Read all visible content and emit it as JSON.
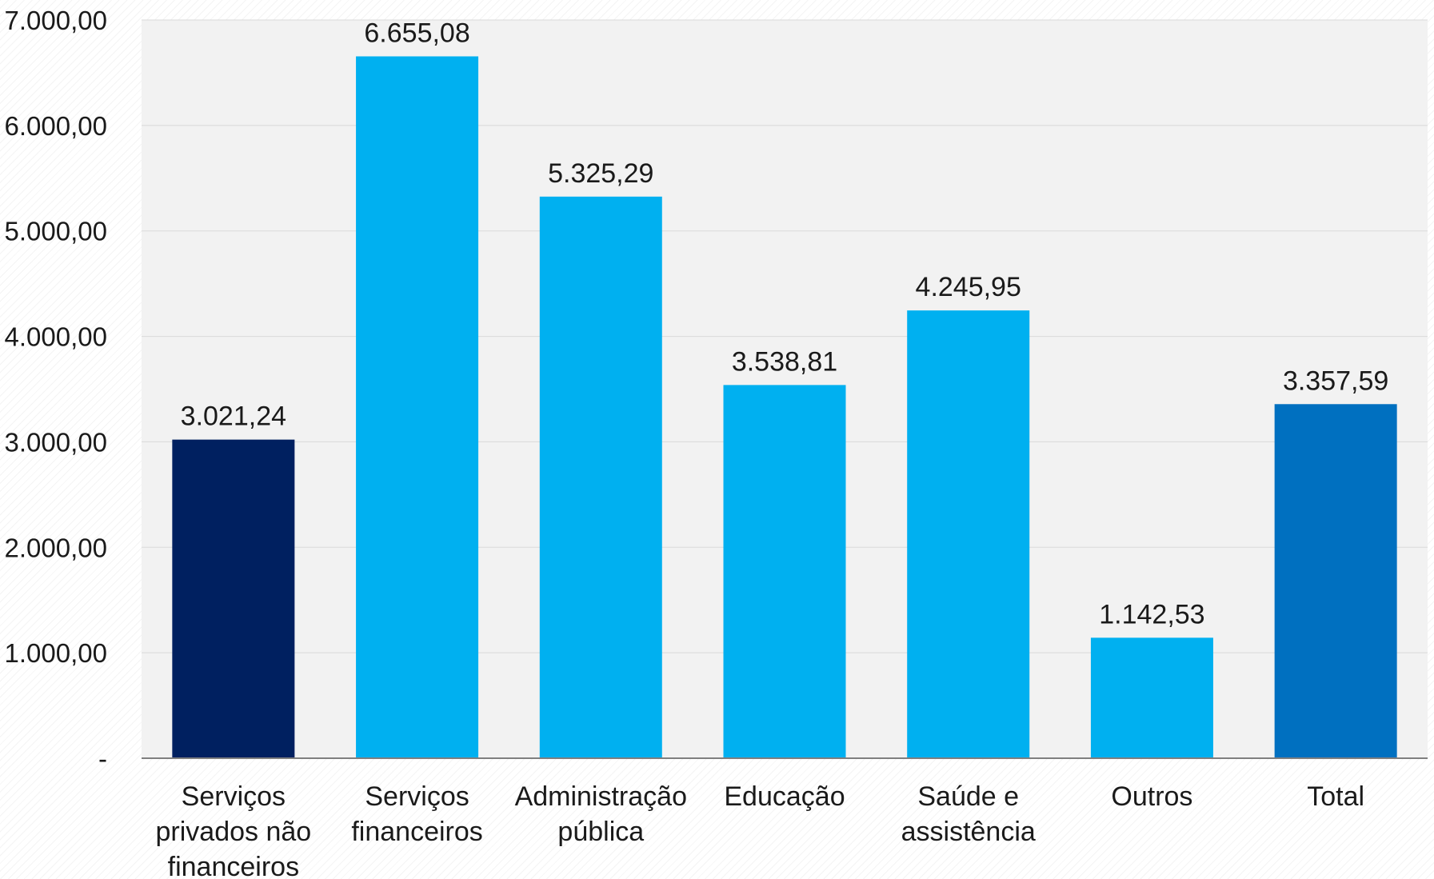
{
  "chart_data": {
    "type": "bar",
    "title": "",
    "xlabel": "",
    "ylabel": "",
    "ylim": [
      0,
      7000
    ],
    "yticks": [
      0,
      1000,
      2000,
      3000,
      4000,
      5000,
      6000,
      7000
    ],
    "ytick_labels": [
      "-",
      "1.000,00",
      "2.000,00",
      "3.000,00",
      "4.000,00",
      "5.000,00",
      "6.000,00",
      "7.000,00"
    ],
    "categories": [
      "Serviços privados não financeiros",
      "Serviços financeiros",
      "Administração pública",
      "Educação",
      "Saúde e assistência",
      "Outros",
      "Total"
    ],
    "category_lines": [
      [
        "Serviços",
        "privados não",
        "financeiros"
      ],
      [
        "Serviços",
        "financeiros"
      ],
      [
        "Administração",
        "pública"
      ],
      [
        "Educação"
      ],
      [
        "Saúde e",
        "assistência"
      ],
      [
        "Outros"
      ],
      [
        "Total"
      ]
    ],
    "values": [
      3021.24,
      6655.08,
      5325.29,
      3538.81,
      4245.95,
      1142.53,
      3357.59
    ],
    "value_labels": [
      "3.021,24",
      "6.655,08",
      "5.325,29",
      "3.538,81",
      "4.245,95",
      "1.142,53",
      "3.357,59"
    ],
    "colors": [
      "#002060",
      "#00B0F0",
      "#00B0F0",
      "#00B0F0",
      "#00B0F0",
      "#00B0F0",
      "#0070C0"
    ],
    "grid": true,
    "plot_background": "#F2F2F2",
    "grid_color": "#D9D9D9",
    "axis_color": "#7F7F7F",
    "legend": "none"
  }
}
